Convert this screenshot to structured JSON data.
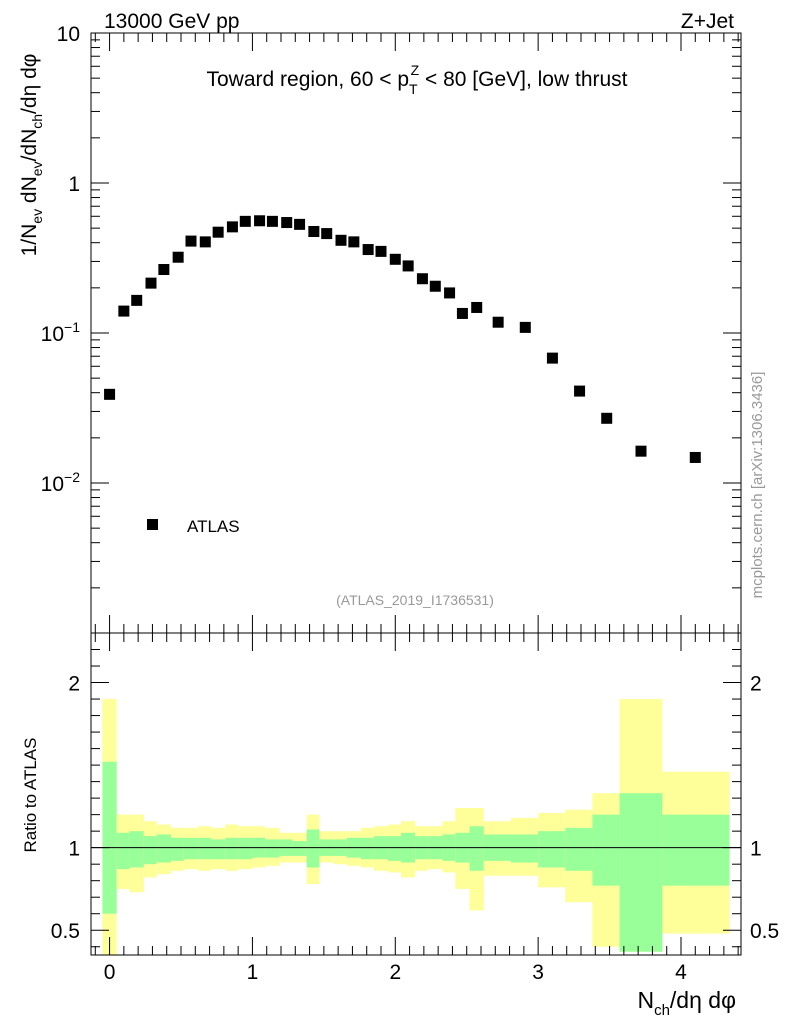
{
  "header": {
    "left_label": "13000 GeV pp",
    "right_label": "Z+Jet",
    "side_label": "mcplots.cern.ch [arXiv:1306.3436]",
    "analysis_id": "(ATLAS_2019_I1736531)"
  },
  "colors": {
    "marker": "#000000",
    "band_inner": "#99ff99",
    "band_outer": "#ffff99",
    "ref_line": "#000000",
    "frame": "#000000",
    "watermark": "#999999"
  },
  "chart_data": [
    {
      "type": "scatter",
      "title": "Toward region, 60 < p_T^Z < 80 [GeV], low thrust",
      "title_parts": {
        "before": "Toward region, 60 < p",
        "sub": "T",
        "sup": "Z",
        "after": " < 80 [GeV], low thrust"
      },
      "ylabel": "1/N_ev dN_ev/dN_ch/dη dφ",
      "yscale": "log",
      "ylim": [
        0.001,
        10
      ],
      "xlim": [
        -0.13,
        4.42
      ],
      "ytick_labels": [
        "10",
        "1",
        "10^-1",
        "10^-2"
      ],
      "legend": {
        "entry": "ATLAS",
        "placement": "lower-left"
      },
      "series": [
        {
          "name": "ATLAS",
          "x": [
            0.0,
            0.1,
            0.19,
            0.29,
            0.38,
            0.48,
            0.57,
            0.67,
            0.76,
            0.86,
            0.95,
            1.05,
            1.14,
            1.24,
            1.33,
            1.43,
            1.52,
            1.62,
            1.71,
            1.81,
            1.9,
            2.0,
            2.09,
            2.19,
            2.28,
            2.38,
            2.47,
            2.57,
            2.72,
            2.91,
            3.1,
            3.29,
            3.48,
            3.72,
            4.1
          ],
          "y": [
            0.039,
            0.14,
            0.165,
            0.215,
            0.265,
            0.32,
            0.41,
            0.405,
            0.47,
            0.51,
            0.555,
            0.56,
            0.555,
            0.545,
            0.53,
            0.475,
            0.46,
            0.415,
            0.405,
            0.36,
            0.35,
            0.31,
            0.28,
            0.23,
            0.205,
            0.185,
            0.135,
            0.148,
            0.118,
            0.109,
            0.068,
            0.041,
            0.027,
            0.0163,
            0.0148
          ]
        }
      ]
    },
    {
      "type": "area",
      "title": "",
      "ylabel": "Ratio to ATLAS",
      "xlabel": "N_ch/dη dφ",
      "ylim": [
        0.35,
        2.3
      ],
      "xlim": [
        -0.13,
        4.42
      ],
      "xtick_labels": [
        "0",
        "1",
        "2",
        "3",
        "4"
      ],
      "ytick_labels": [
        "0.5",
        "1",
        "2"
      ],
      "reference_value": 1,
      "bands": [
        {
          "x0": -0.05,
          "x1": 0.05,
          "inner": [
            0.6,
            1.52
          ],
          "outer": [
            0.3,
            1.9
          ]
        },
        {
          "x0": 0.05,
          "x1": 0.14,
          "inner": [
            0.87,
            1.09
          ],
          "outer": [
            0.75,
            1.2
          ]
        },
        {
          "x0": 0.14,
          "x1": 0.24,
          "inner": [
            0.88,
            1.1
          ],
          "outer": [
            0.73,
            1.2
          ]
        },
        {
          "x0": 0.24,
          "x1": 0.33,
          "inner": [
            0.9,
            1.07
          ],
          "outer": [
            0.82,
            1.16
          ]
        },
        {
          "x0": 0.33,
          "x1": 0.43,
          "inner": [
            0.91,
            1.08
          ],
          "outer": [
            0.84,
            1.14
          ]
        },
        {
          "x0": 0.43,
          "x1": 0.52,
          "inner": [
            0.92,
            1.06
          ],
          "outer": [
            0.86,
            1.12
          ]
        },
        {
          "x0": 0.52,
          "x1": 0.62,
          "inner": [
            0.93,
            1.06
          ],
          "outer": [
            0.87,
            1.12
          ]
        },
        {
          "x0": 0.62,
          "x1": 0.71,
          "inner": [
            0.93,
            1.06
          ],
          "outer": [
            0.86,
            1.13
          ]
        },
        {
          "x0": 0.71,
          "x1": 0.81,
          "inner": [
            0.93,
            1.05
          ],
          "outer": [
            0.87,
            1.12
          ]
        },
        {
          "x0": 0.81,
          "x1": 0.9,
          "inner": [
            0.93,
            1.06
          ],
          "outer": [
            0.86,
            1.14
          ]
        },
        {
          "x0": 0.9,
          "x1": 1.0,
          "inner": [
            0.93,
            1.06
          ],
          "outer": [
            0.87,
            1.13
          ]
        },
        {
          "x0": 1.0,
          "x1": 1.09,
          "inner": [
            0.94,
            1.06
          ],
          "outer": [
            0.88,
            1.13
          ]
        },
        {
          "x0": 1.09,
          "x1": 1.19,
          "inner": [
            0.94,
            1.05
          ],
          "outer": [
            0.89,
            1.12
          ]
        },
        {
          "x0": 1.19,
          "x1": 1.28,
          "inner": [
            0.95,
            1.05
          ],
          "outer": [
            0.91,
            1.09
          ]
        },
        {
          "x0": 1.28,
          "x1": 1.38,
          "inner": [
            0.95,
            1.04
          ],
          "outer": [
            0.91,
            1.09
          ]
        },
        {
          "x0": 1.38,
          "x1": 1.47,
          "inner": [
            0.88,
            1.11
          ],
          "outer": [
            0.78,
            1.2
          ]
        },
        {
          "x0": 1.47,
          "x1": 1.57,
          "inner": [
            0.95,
            1.05
          ],
          "outer": [
            0.91,
            1.1
          ]
        },
        {
          "x0": 1.57,
          "x1": 1.66,
          "inner": [
            0.95,
            1.05
          ],
          "outer": [
            0.9,
            1.1
          ]
        },
        {
          "x0": 1.66,
          "x1": 1.76,
          "inner": [
            0.94,
            1.06
          ],
          "outer": [
            0.89,
            1.1
          ]
        },
        {
          "x0": 1.76,
          "x1": 1.85,
          "inner": [
            0.93,
            1.06
          ],
          "outer": [
            0.88,
            1.12
          ]
        },
        {
          "x0": 1.85,
          "x1": 1.95,
          "inner": [
            0.93,
            1.07
          ],
          "outer": [
            0.86,
            1.13
          ]
        },
        {
          "x0": 1.95,
          "x1": 2.04,
          "inner": [
            0.92,
            1.07
          ],
          "outer": [
            0.85,
            1.14
          ]
        },
        {
          "x0": 2.04,
          "x1": 2.14,
          "inner": [
            0.91,
            1.09
          ],
          "outer": [
            0.82,
            1.16
          ]
        },
        {
          "x0": 2.14,
          "x1": 2.23,
          "inner": [
            0.93,
            1.07
          ],
          "outer": [
            0.86,
            1.13
          ]
        },
        {
          "x0": 2.23,
          "x1": 2.33,
          "inner": [
            0.93,
            1.07
          ],
          "outer": [
            0.87,
            1.13
          ]
        },
        {
          "x0": 2.33,
          "x1": 2.42,
          "inner": [
            0.92,
            1.08
          ],
          "outer": [
            0.85,
            1.16
          ]
        },
        {
          "x0": 2.42,
          "x1": 2.52,
          "inner": [
            0.91,
            1.09
          ],
          "outer": [
            0.75,
            1.24
          ]
        },
        {
          "x0": 2.52,
          "x1": 2.62,
          "inner": [
            0.86,
            1.13
          ],
          "outer": [
            0.62,
            1.24
          ]
        },
        {
          "x0": 2.62,
          "x1": 2.81,
          "inner": [
            0.92,
            1.08
          ],
          "outer": [
            0.83,
            1.16
          ]
        },
        {
          "x0": 2.81,
          "x1": 3.0,
          "inner": [
            0.91,
            1.08
          ],
          "outer": [
            0.83,
            1.18
          ]
        },
        {
          "x0": 3.0,
          "x1": 3.19,
          "inner": [
            0.88,
            1.1
          ],
          "outer": [
            0.76,
            1.21
          ]
        },
        {
          "x0": 3.19,
          "x1": 3.38,
          "inner": [
            0.86,
            1.12
          ],
          "outer": [
            0.67,
            1.23
          ]
        },
        {
          "x0": 3.38,
          "x1": 3.57,
          "inner": [
            0.77,
            1.2
          ],
          "outer": [
            0.4,
            1.33
          ]
        },
        {
          "x0": 3.57,
          "x1": 3.87,
          "inner": [
            0.37,
            1.33
          ],
          "outer": [
            0.37,
            1.9
          ]
        },
        {
          "x0": 3.87,
          "x1": 4.34,
          "inner": [
            0.77,
            1.2
          ],
          "outer": [
            0.48,
            1.46
          ]
        }
      ]
    }
  ]
}
